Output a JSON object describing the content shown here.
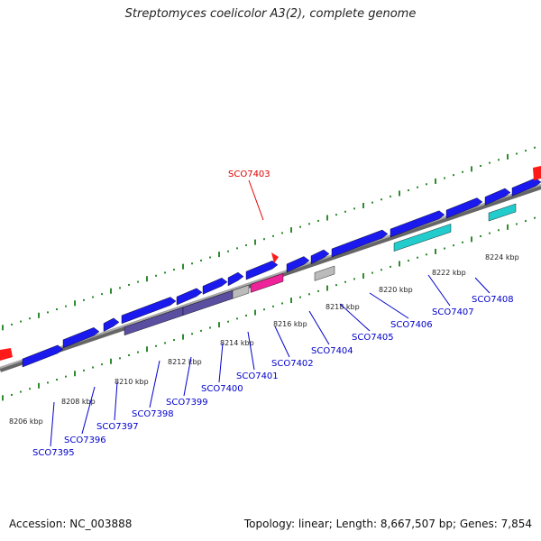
{
  "title": "Streptomyces coelicolor A3(2), complete genome",
  "footer": {
    "accession": "Accession: NC_003888",
    "summary": "Topology: linear; Length: 8,667,507 bp; Genes: 7,854"
  },
  "highlight_gene": "SCO7403",
  "tick_labels": [
    "8206 kbp",
    "8208 kbp",
    "8210 kbp",
    "8212 kbp",
    "8214 kbp",
    "8216 kbp",
    "8218 kbp",
    "8220 kbp",
    "8222 kbp",
    "8224 kbp"
  ],
  "gene_labels": [
    "SCO7395",
    "SCO7396",
    "SCO7397",
    "SCO7398",
    "SCO7399",
    "SCO7400",
    "SCO7401",
    "SCO7402",
    "SCO7404",
    "SCO7405",
    "SCO7406",
    "SCO7407",
    "SCO7408"
  ],
  "colors": {
    "gene": "#1a1aee",
    "highlight": "#ff1a1a",
    "tick": "#2e8b2e",
    "backbone": "#8c8c8c",
    "cyan": "#22cccc",
    "purple": "#5a4ea0",
    "magenta": "#ee2299",
    "grey": "#bbbbbb"
  }
}
